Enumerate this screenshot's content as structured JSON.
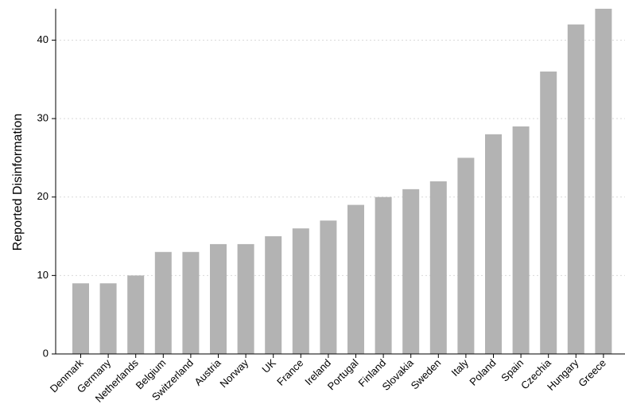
{
  "chart_data": {
    "type": "bar",
    "title": "",
    "xlabel": "",
    "ylabel": "Reported Disinformation",
    "categories": [
      "Denmark",
      "Germany",
      "Netherlands",
      "Belgium",
      "Switzerland",
      "Austria",
      "Norway",
      "UK",
      "France",
      "Ireland",
      "Portugal",
      "Finland",
      "Slovakia",
      "Sweden",
      "Italy",
      "Poland",
      "Spain",
      "Czechia",
      "Hungary",
      "Greece"
    ],
    "values": [
      9,
      9,
      10,
      13,
      13,
      14,
      14,
      15,
      16,
      17,
      19,
      20,
      21,
      22,
      25,
      28,
      29,
      36,
      42,
      44
    ],
    "ylim": [
      0,
      44
    ],
    "yticks": [
      0,
      10,
      20,
      30,
      40
    ],
    "grid": true,
    "colors": {
      "bar": "#b3b3b3",
      "grid": "#d9d9d9",
      "axis": "#000000"
    }
  }
}
